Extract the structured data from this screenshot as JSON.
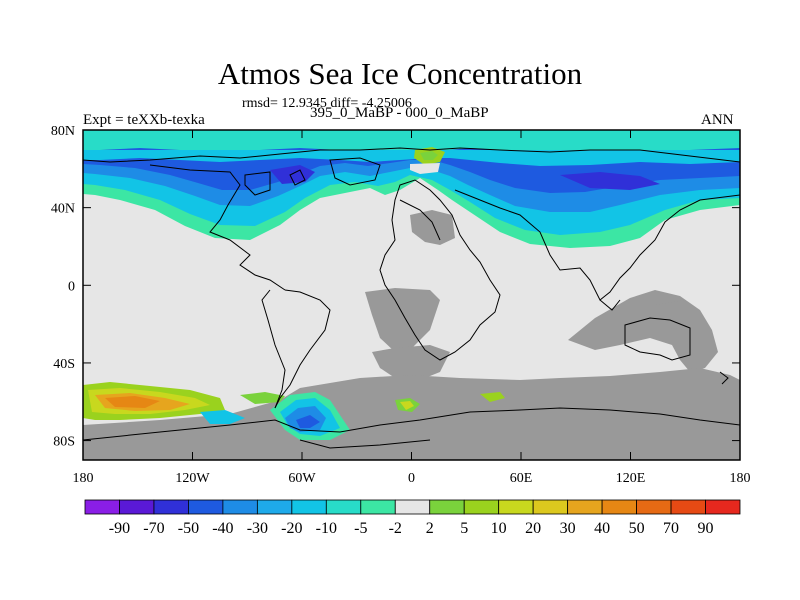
{
  "chart_data": {
    "type": "heatmap",
    "title": "Atmos Sea Ice Concentration",
    "stats": "rmsd= 12.9345 diff= -4.25006",
    "experiment": "Expt = teXXb-texka",
    "comparison": "395_0_MaBP - 000_0_MaBP",
    "season": "ANN",
    "x_ticks": [
      "180",
      "120W",
      "60W",
      "0",
      "60E",
      "120E",
      "180"
    ],
    "x_range": [
      -180,
      180
    ],
    "y_ticks": [
      "80N",
      "40N",
      "0",
      "40S",
      "80S"
    ],
    "y_tick_values": [
      80,
      40,
      0,
      -40,
      -80
    ],
    "y_range": [
      -90,
      80
    ],
    "colorbar_labels": [
      "-90",
      "-70",
      "-50",
      "-40",
      "-30",
      "-20",
      "-10",
      "-5",
      "-2",
      "2",
      "5",
      "10",
      "20",
      "30",
      "40",
      "50",
      "70",
      "90"
    ],
    "colorbar_colors": [
      "#8a1ee6",
      "#5a19d6",
      "#3030d8",
      "#1e5ae0",
      "#1e8ce6",
      "#1eaaea",
      "#12c4e6",
      "#28dcc8",
      "#3ce6a4",
      "#e6e6e6",
      "#7ad23c",
      "#9ad21e",
      "#c8d81e",
      "#dcc81e",
      "#e6a51e",
      "#e68714",
      "#e66a14",
      "#e64a14",
      "#e6281e"
    ],
    "land_color": "#999999",
    "no_change_color": "#e6e6e6"
  }
}
